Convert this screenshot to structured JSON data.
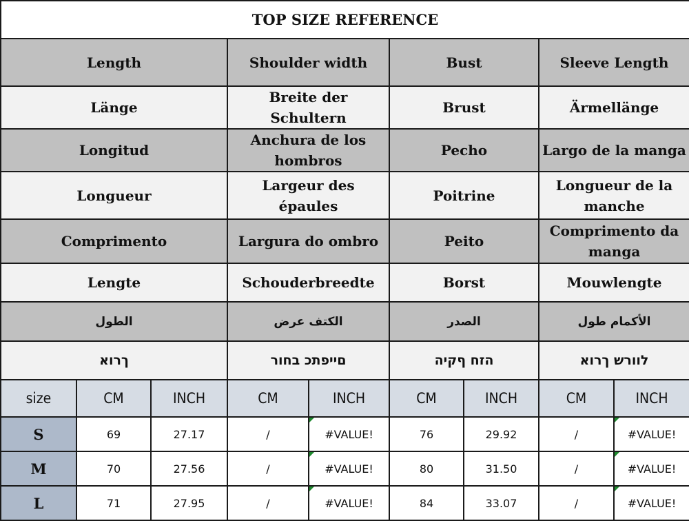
{
  "title": "TOP SIZE REFERENCE",
  "label_rows": [
    {
      "style": "dark",
      "cells": [
        "Length",
        "Shoulder width",
        "Bust",
        "Sleeve Length"
      ]
    },
    {
      "style": "light",
      "cells": [
        "Länge",
        "Breite der Schultern",
        "Brust",
        "Ärmellänge"
      ]
    },
    {
      "style": "dark",
      "cells": [
        "Longitud",
        "Anchura de los hombros",
        "Pecho",
        "Largo de la manga"
      ]
    },
    {
      "style": "light",
      "cells": [
        "Longueur",
        "Largeur des épaules",
        "Poitrine",
        "Longueur de la manche"
      ]
    },
    {
      "style": "dark",
      "cells": [
        "Comprimento",
        "Largura do ombro",
        "Peito",
        "Comprimento da manga"
      ]
    },
    {
      "style": "light",
      "cells": [
        "Lengte",
        "Schouderbreedte",
        "Borst",
        "Mouwlengte"
      ]
    },
    {
      "style": "dark",
      "cells": [
        "الطول",
        "الكتف عرض",
        "الصدر",
        "الأكمام طول"
      ]
    },
    {
      "style": "light",
      "cells": [
        "ךרוא",
        "םייפתכ בחור",
        "הזח ףקיה",
        "לוורש ךרוא"
      ]
    }
  ],
  "unit_header": [
    "size",
    "CM",
    "INCH",
    "CM",
    "INCH",
    "CM",
    "INCH",
    "CM",
    "INCH"
  ],
  "rows": [
    {
      "size": "S",
      "values": [
        "69",
        "27.17",
        "/",
        "#VALUE!",
        "76",
        "29.92",
        "/",
        "#VALUE!"
      ]
    },
    {
      "size": "M",
      "values": [
        "70",
        "27.56",
        "/",
        "#VALUE!",
        "80",
        "31.50",
        "/",
        "#VALUE!"
      ]
    },
    {
      "size": "L",
      "values": [
        "71",
        "27.95",
        "/",
        "#VALUE!",
        "84",
        "33.07",
        "/",
        "#VALUE!"
      ]
    }
  ],
  "colors": {
    "header_gray": "#c0c0c0",
    "light_row": "#f2f2f2",
    "unit_header": "#d6dce4",
    "size_column": "#adb9ca",
    "error_marker": "#1e8a2e"
  }
}
